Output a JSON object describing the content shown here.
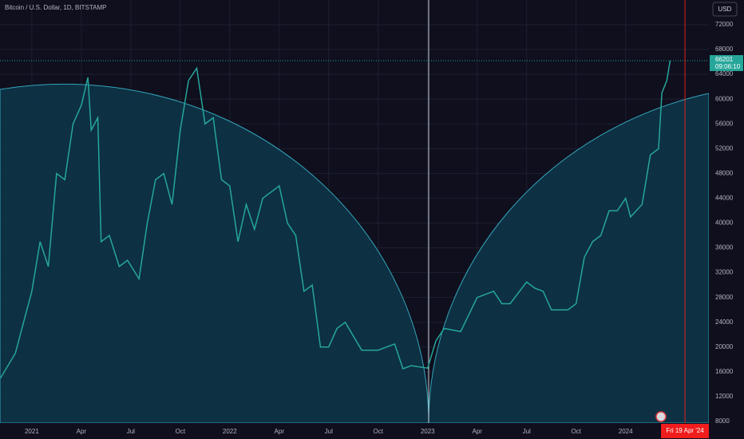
{
  "chart_data": {
    "type": "line",
    "title": "Bitcoin / U.S. Dollar, 1D, BITSTAMP",
    "currency": "USD",
    "last_price": 66201,
    "countdown": "09:06:10",
    "crosshair_label": "Fri 19 Apr '24",
    "crosshair_x": 39.6,
    "xlim": [
      -1.93,
      41.05
    ],
    "xticks": [
      {
        "value": 0,
        "label": "2021"
      },
      {
        "value": 3,
        "label": "Apr"
      },
      {
        "value": 6,
        "label": "Jul"
      },
      {
        "value": 9,
        "label": "Oct"
      },
      {
        "value": 12,
        "label": "2022"
      },
      {
        "value": 15,
        "label": "Apr"
      },
      {
        "value": 18,
        "label": "Jul"
      },
      {
        "value": 21,
        "label": "Oct"
      },
      {
        "value": 24,
        "label": "2023"
      },
      {
        "value": 27,
        "label": "Apr"
      },
      {
        "value": 30,
        "label": "Jul"
      },
      {
        "value": 33,
        "label": "Oct"
      },
      {
        "value": 36,
        "label": "2024"
      }
    ],
    "ylim": [
      7742,
      75992
    ],
    "yticks": [
      8000,
      12000,
      16000,
      20000,
      24000,
      28000,
      32000,
      36000,
      40000,
      44000,
      48000,
      52000,
      56000,
      60000,
      64000,
      68000,
      72000
    ],
    "grid": true,
    "series": [
      {
        "color": "#26a69a",
        "x": [
          -1.9,
          -1,
          0,
          0.5,
          1,
          1.5,
          2,
          2.5,
          3,
          3.4,
          3.6,
          4,
          4.2,
          4.7,
          5.3,
          5.8,
          6.5,
          7,
          7.5,
          8,
          8.5,
          9,
          9.5,
          10,
          10.5,
          11,
          11.5,
          12,
          12.5,
          13,
          13.5,
          14,
          15,
          15.5,
          16,
          16.5,
          17,
          17.5,
          18,
          18.5,
          19,
          20,
          21,
          22,
          22.5,
          23,
          24,
          24.5,
          25,
          26,
          27,
          28,
          28.5,
          29,
          30,
          30.5,
          31,
          31.5,
          32.5,
          33,
          33.5,
          34,
          34.5,
          35,
          35.5,
          36,
          36.3,
          37,
          37.5,
          38,
          38.2,
          38.5,
          38.7
        ],
        "values": [
          15000,
          19000,
          29000,
          37000,
          33000,
          48000,
          47000,
          56000,
          59000,
          63500,
          55000,
          57000,
          37000,
          38000,
          33000,
          34000,
          31000,
          40000,
          47000,
          48000,
          43000,
          55000,
          63000,
          65000,
          56000,
          57000,
          47000,
          46000,
          37000,
          43000,
          39000,
          44000,
          46000,
          40000,
          38000,
          29000,
          30000,
          20000,
          20000,
          23000,
          24000,
          19500,
          19500,
          20500,
          16500,
          17000,
          16600,
          21000,
          23000,
          22500,
          28000,
          29000,
          27000,
          27000,
          30500,
          29500,
          29000,
          26000,
          26000,
          27000,
          34500,
          37000,
          38000,
          42000,
          42000,
          44000,
          41000,
          43000,
          51000,
          52000,
          61000,
          63000,
          66201
        ]
      }
    ]
  }
}
